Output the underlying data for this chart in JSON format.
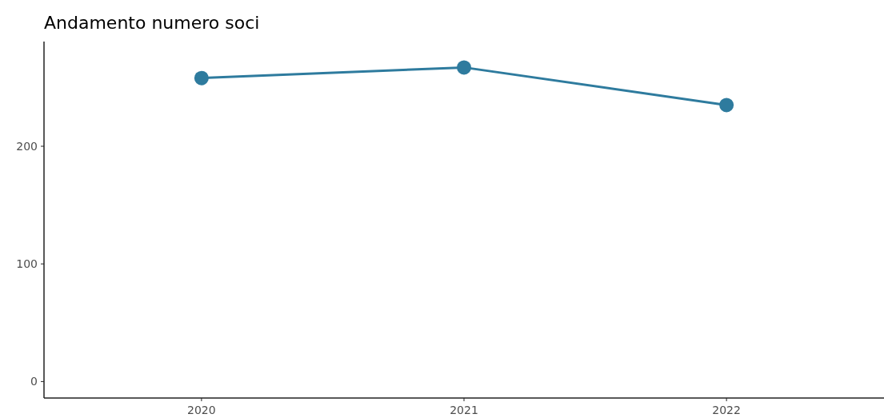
{
  "chart_data": {
    "type": "line",
    "title": "Andamento numero soci",
    "categories": [
      "2020",
      "2021",
      "2022"
    ],
    "series": [
      {
        "color": "#2e7b9e",
        "values": [
          258,
          267,
          235
        ]
      }
    ],
    "ylim": [
      -14,
      289
    ],
    "yticks": [
      0,
      100,
      200
    ],
    "grid": false,
    "marker": "circle",
    "line_style": "solid"
  }
}
